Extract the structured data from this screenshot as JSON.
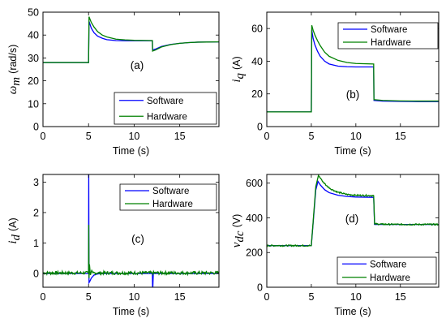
{
  "figure": {
    "background": "#ffffff"
  },
  "series_colors": {
    "Software": "#0000ff",
    "Hardware": "#008000"
  },
  "chart_data": [
    {
      "id": "a",
      "type": "line",
      "panel_label": "(a)",
      "xlabel": "Time (s)",
      "ylabel_symbol": "ω",
      "ylabel_sub": "m",
      "ylabel_unit": "(rad/s)",
      "xlim": [
        0,
        19.3
      ],
      "ylim": [
        0,
        50
      ],
      "xticks": [
        0,
        5,
        10,
        15
      ],
      "yticks": [
        0,
        10,
        20,
        30,
        40,
        50
      ],
      "legend": {
        "position": "bottom-right",
        "entries": [
          "Software",
          "Hardware"
        ]
      },
      "series": [
        {
          "name": "Software",
          "x": [
            0,
            4.95,
            5.0,
            5.05,
            5.3,
            5.6,
            6.0,
            6.5,
            7,
            8,
            9,
            10,
            12.0,
            12.02,
            12.3,
            13,
            14,
            15,
            16,
            17,
            19.3
          ],
          "y": [
            28,
            28,
            28,
            46,
            43,
            41,
            39.5,
            38.6,
            38,
            37.6,
            37.5,
            37.5,
            37.5,
            33.5,
            33.8,
            35,
            35.9,
            36.4,
            36.7,
            36.9,
            37
          ]
        },
        {
          "name": "Hardware",
          "x": [
            0,
            4.95,
            5.0,
            5.05,
            5.3,
            5.6,
            6.0,
            6.5,
            7,
            8,
            9,
            10,
            12.0,
            12.02,
            12.3,
            13,
            14,
            15,
            16,
            17,
            19.3
          ],
          "y": [
            28,
            28,
            28,
            48,
            45.5,
            43.5,
            41.5,
            40,
            39.2,
            38.2,
            37.9,
            37.7,
            37.6,
            33,
            33.4,
            34.8,
            35.8,
            36.4,
            36.7,
            36.9,
            37
          ]
        }
      ]
    },
    {
      "id": "b",
      "type": "line",
      "panel_label": "(b)",
      "xlabel": "Time (s)",
      "ylabel_symbol": "i",
      "ylabel_sub": "q",
      "ylabel_unit": "(A)",
      "xlim": [
        0,
        19.3
      ],
      "ylim": [
        0,
        70
      ],
      "xticks": [
        0,
        5,
        10,
        15
      ],
      "yticks": [
        0,
        20,
        40,
        60
      ],
      "legend": {
        "position": "top-right",
        "entries": [
          "Software",
          "Hardware"
        ]
      },
      "series": [
        {
          "name": "Software",
          "x": [
            0,
            4.95,
            5.0,
            5.05,
            5.2,
            5.4,
            5.7,
            6.0,
            6.5,
            7,
            8,
            9,
            10,
            12.0,
            12.03,
            13,
            15,
            17,
            19.3
          ],
          "y": [
            9,
            9,
            9,
            59,
            54,
            50,
            46,
            43,
            40,
            38.3,
            37,
            36.6,
            36.5,
            36.5,
            16,
            15.6,
            15.4,
            15.3,
            15.3
          ]
        },
        {
          "name": "Hardware",
          "x": [
            0,
            4.95,
            5.0,
            5.05,
            5.2,
            5.4,
            5.7,
            6.0,
            6.5,
            7,
            8,
            9,
            10,
            12.0,
            12.03,
            13,
            15,
            17,
            19.3
          ],
          "y": [
            9,
            9,
            9,
            62,
            59,
            56,
            52.5,
            49.5,
            45.5,
            43,
            40.5,
            39.2,
            38.6,
            38.3,
            16.5,
            16,
            15.7,
            15.6,
            15.6
          ]
        }
      ]
    },
    {
      "id": "c",
      "type": "line",
      "panel_label": "(c)",
      "xlabel": "Time (s)",
      "ylabel_symbol": "i",
      "ylabel_sub": "d",
      "ylabel_unit": "(A)",
      "xlim": [
        0,
        19.3
      ],
      "ylim": [
        -0.45,
        3.25
      ],
      "xticks": [
        0,
        5,
        10,
        15
      ],
      "yticks": [
        0,
        1,
        2,
        3
      ],
      "legend": {
        "position": "top-right",
        "entries": [
          "Software",
          "Hardware"
        ]
      },
      "series": [
        {
          "name": "Software",
          "x": [
            0,
            4.95,
            5.0,
            5.02,
            5.05,
            5.15,
            5.3,
            5.6,
            5.9,
            6.3,
            11.95,
            12.0,
            12.02,
            12.05,
            12.1,
            19.3
          ],
          "y": [
            0,
            0,
            0,
            3.25,
            -0.3,
            -0.25,
            -0.15,
            -0.05,
            -0.02,
            0,
            0,
            0,
            -0.45,
            -0.45,
            0,
            0
          ]
        },
        {
          "name": "Hardware",
          "x": [
            0,
            2,
            4,
            4.95,
            5.0,
            5.02,
            5.05,
            5.1,
            5.2,
            5.35,
            5.5,
            6,
            8,
            10,
            12,
            14,
            16,
            19.3
          ],
          "y": [
            0.02,
            0.02,
            0.02,
            0.02,
            0.02,
            1.6,
            -0.15,
            0.3,
            -0.05,
            0.1,
            0.02,
            0.02,
            0.02,
            0.02,
            0.02,
            0.02,
            0.02,
            0.02
          ],
          "noise": 0.05
        }
      ]
    },
    {
      "id": "d",
      "type": "line",
      "panel_label": "(d)",
      "xlabel": "Time (s)",
      "ylabel_symbol": "v",
      "ylabel_sub": "dc",
      "ylabel_unit": "(V)",
      "xlim": [
        0,
        19.3
      ],
      "ylim": [
        0,
        650
      ],
      "xticks": [
        0,
        5,
        10,
        15
      ],
      "yticks": [
        0,
        200,
        400,
        600
      ],
      "legend": {
        "position": "bottom-right",
        "entries": [
          "Software",
          "Hardware"
        ]
      },
      "series": [
        {
          "name": "Software",
          "x": [
            0,
            4.95,
            5.0,
            5.5,
            5.75,
            6.0,
            6.5,
            7,
            8,
            9,
            10,
            12.0,
            12.1,
            13,
            15,
            17,
            19.3
          ],
          "y": [
            240,
            240,
            240,
            560,
            610,
            590,
            562,
            545,
            530,
            523,
            520,
            518,
            362,
            362,
            362,
            362,
            362
          ]
        },
        {
          "name": "Hardware",
          "x": [
            0,
            4.95,
            5.0,
            5.5,
            5.8,
            6.2,
            6.7,
            7.3,
            8,
            9,
            10,
            12.0,
            12.1,
            13,
            15,
            17,
            19.3
          ],
          "y": [
            240,
            240,
            240,
            580,
            645,
            615,
            585,
            563,
            547,
            535,
            530,
            528,
            365,
            363,
            362,
            362,
            362
          ],
          "noise": 4
        }
      ]
    }
  ]
}
